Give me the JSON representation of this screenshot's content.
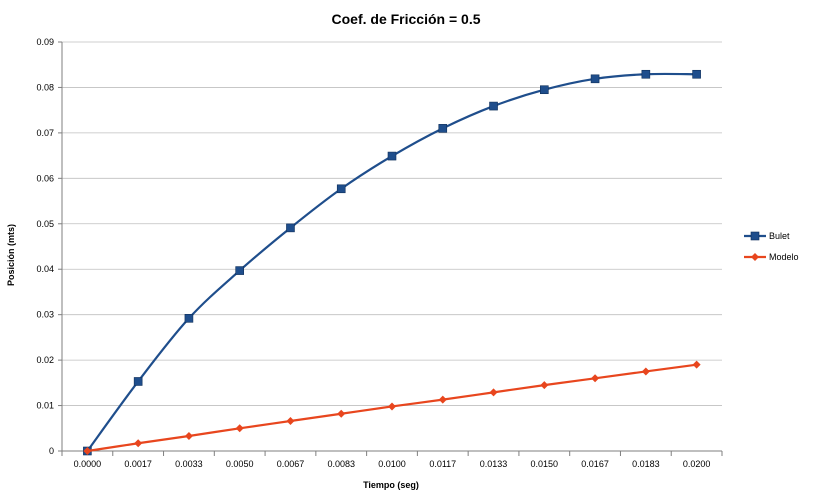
{
  "chart_data": {
    "type": "line",
    "title": "Coef. de Fricción = 0.5",
    "xlabel": "Tiempo (seg)",
    "ylabel": "Posición (mts)",
    "categories": [
      "0.0000",
      "0.0017",
      "0.0033",
      "0.0050",
      "0.0067",
      "0.0083",
      "0.0100",
      "0.0117",
      "0.0133",
      "0.0150",
      "0.0167",
      "0.0183",
      "0.0200"
    ],
    "y_ticks": [
      "0",
      "0.01",
      "0.02",
      "0.03",
      "0.04",
      "0.05",
      "0.06",
      "0.07",
      "0.08",
      "0.09"
    ],
    "ylim": [
      0,
      0.09
    ],
    "grid": true,
    "legend_position": "right",
    "series": [
      {
        "name": "Bulet",
        "color": "#1f4e8c",
        "marker": "square",
        "values": [
          0,
          0.0153,
          0.0292,
          0.0397,
          0.0491,
          0.0577,
          0.0649,
          0.071,
          0.0759,
          0.0795,
          0.0819,
          0.0829,
          0.0829
        ]
      },
      {
        "name": "Modelo",
        "color": "#e8461e",
        "marker": "diamond",
        "values": [
          0,
          0.0017,
          0.0033,
          0.005,
          0.0066,
          0.0082,
          0.0098,
          0.0113,
          0.0129,
          0.0145,
          0.016,
          0.0175,
          0.019
        ]
      }
    ]
  }
}
